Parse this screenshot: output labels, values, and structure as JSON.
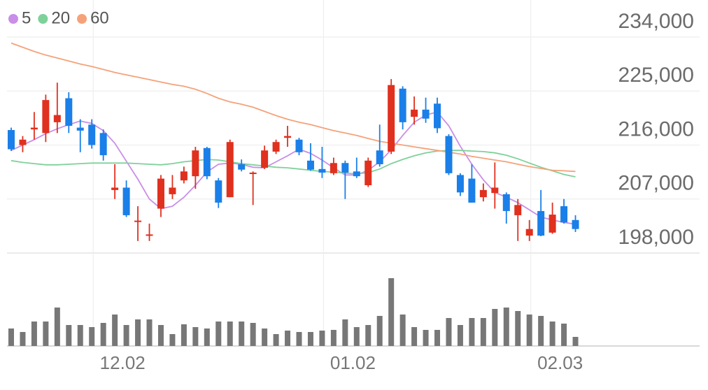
{
  "chart_data": {
    "type": "candlestick",
    "categories": [
      null,
      null,
      null,
      null,
      null,
      null,
      null,
      "12.02",
      null,
      null,
      null,
      null,
      null,
      null,
      null,
      null,
      null,
      null,
      null,
      null,
      null,
      null,
      null,
      null,
      null,
      null,
      null,
      "01.02",
      null,
      null,
      null,
      null,
      null,
      null,
      null,
      null,
      null,
      null,
      null,
      null,
      null,
      null,
      null,
      null,
      null,
      "02.03",
      null,
      null,
      null,
      null
    ],
    "open": [
      218500,
      216000,
      218600,
      218000,
      219800,
      223800,
      218900,
      219400,
      218000,
      208500,
      208900,
      203200,
      200900,
      205400,
      207800,
      210100,
      210800,
      215500,
      210100,
      207300,
      212800,
      211200,
      212200,
      214900,
      217200,
      216900,
      213400,
      212000,
      211300,
      213000,
      211600,
      209300,
      215100,
      214900,
      225400,
      220700,
      221900,
      222900,
      217500,
      211000,
      210400,
      207300,
      208000,
      207800,
      204300,
      200900,
      205000,
      201400,
      205800,
      203500
    ],
    "high": [
      218900,
      217500,
      221500,
      224400,
      226400,
      224800,
      220300,
      220300,
      218600,
      212800,
      210100,
      205800,
      202900,
      211000,
      211000,
      212400,
      215700,
      215700,
      210500,
      216900,
      213600,
      211600,
      215900,
      216900,
      219200,
      217200,
      216300,
      215700,
      213900,
      213400,
      213900,
      213900,
      219400,
      227000,
      225800,
      224100,
      223900,
      223900,
      217800,
      211300,
      212800,
      209600,
      213100,
      208100,
      207000,
      203500,
      208500,
      206400,
      207000,
      204300
    ],
    "low": [
      215000,
      214800,
      216900,
      216500,
      218000,
      218000,
      214800,
      215400,
      213400,
      207000,
      204000,
      200000,
      200000,
      204000,
      207000,
      209600,
      208700,
      210300,
      205500,
      207300,
      211600,
      206000,
      212000,
      214500,
      215700,
      214300,
      211700,
      210500,
      211000,
      207000,
      210500,
      209000,
      212400,
      214500,
      218600,
      219400,
      219700,
      218000,
      211000,
      207500,
      206400,
      206600,
      205400,
      202900,
      200000,
      200000,
      200800,
      201200,
      202900,
      201500
    ],
    "close": [
      215300,
      216900,
      218900,
      223500,
      221000,
      219200,
      218400,
      216000,
      214300,
      208900,
      204300,
      203400,
      201100,
      210400,
      208900,
      211600,
      215100,
      210800,
      206400,
      216500,
      211900,
      211400,
      215100,
      216500,
      217500,
      214800,
      211900,
      211400,
      213000,
      211400,
      210800,
      213400,
      212800,
      226000,
      219800,
      221900,
      220400,
      218800,
      211300,
      208100,
      206400,
      208500,
      208900,
      205000,
      206000,
      202000,
      200900,
      204400,
      203100,
      202000
    ],
    "up_color": "#e0301e",
    "down_color": "#1a7fe8",
    "ylim": [
      198000,
      234000
    ],
    "yticks": [
      {
        "value": 198000,
        "label": "198,000"
      },
      {
        "value": 207000,
        "label": "207,000"
      },
      {
        "value": 216000,
        "label": "216,000"
      },
      {
        "value": 225000,
        "label": "225,000"
      },
      {
        "value": 234000,
        "label": "234,000"
      }
    ],
    "grid": true,
    "legend": "top-left",
    "series": [
      {
        "name": "5",
        "color": "#c98ee8",
        "values": [
          215100,
          216000,
          216900,
          217900,
          218700,
          219400,
          220000,
          219600,
          218400,
          216300,
          213300,
          210300,
          207000,
          205400,
          205800,
          207300,
          209300,
          211500,
          212800,
          213000,
          212800,
          212300,
          212200,
          213200,
          214200,
          215300,
          214600,
          213500,
          212200,
          211000,
          211000,
          211800,
          213200,
          215200,
          217600,
          219800,
          221000,
          221500,
          219200,
          215800,
          212800,
          210200,
          208100,
          207300,
          206400,
          205200,
          204000,
          203500,
          203100,
          202800
        ]
      },
      {
        "name": "20",
        "color": "#7fd19a",
        "values": [
          213400,
          213100,
          212900,
          212700,
          212700,
          212800,
          212900,
          213000,
          213000,
          213000,
          213000,
          212900,
          212800,
          212700,
          212900,
          213200,
          213400,
          213600,
          213500,
          213200,
          212900,
          212700,
          212500,
          212300,
          212200,
          212000,
          211800,
          211600,
          211500,
          211300,
          211200,
          211400,
          212000,
          212900,
          213600,
          214200,
          214700,
          215000,
          215100,
          215100,
          215000,
          214900,
          214700,
          214300,
          213700,
          213000,
          212300,
          211700,
          211100,
          210700
        ]
      },
      {
        "name": "60",
        "color": "#f5a27a",
        "values": [
          233000,
          232300,
          231600,
          231000,
          230500,
          230000,
          229500,
          229100,
          228600,
          228100,
          227700,
          227300,
          226900,
          226500,
          226100,
          225800,
          225300,
          224600,
          223800,
          223200,
          222800,
          222300,
          221600,
          220900,
          220300,
          219800,
          219400,
          218900,
          218400,
          218000,
          217600,
          217100,
          216600,
          216300,
          216000,
          215700,
          215400,
          215100,
          214800,
          214500,
          214100,
          213800,
          213500,
          213200,
          212800,
          212400,
          212100,
          211800,
          211700,
          211600
        ]
      }
    ],
    "volume": {
      "color": "#777777",
      "ylim": [
        0,
        125
      ],
      "values": [
        25,
        20,
        35,
        35,
        55,
        30,
        30,
        27,
        33,
        45,
        30,
        38,
        38,
        30,
        17,
        31,
        27,
        25,
        35,
        35,
        35,
        33,
        25,
        17,
        22,
        20,
        20,
        22,
        23,
        38,
        27,
        30,
        43,
        97,
        45,
        27,
        23,
        23,
        40,
        30,
        40,
        40,
        53,
        55,
        50,
        45,
        43,
        35,
        32,
        13
      ]
    }
  }
}
